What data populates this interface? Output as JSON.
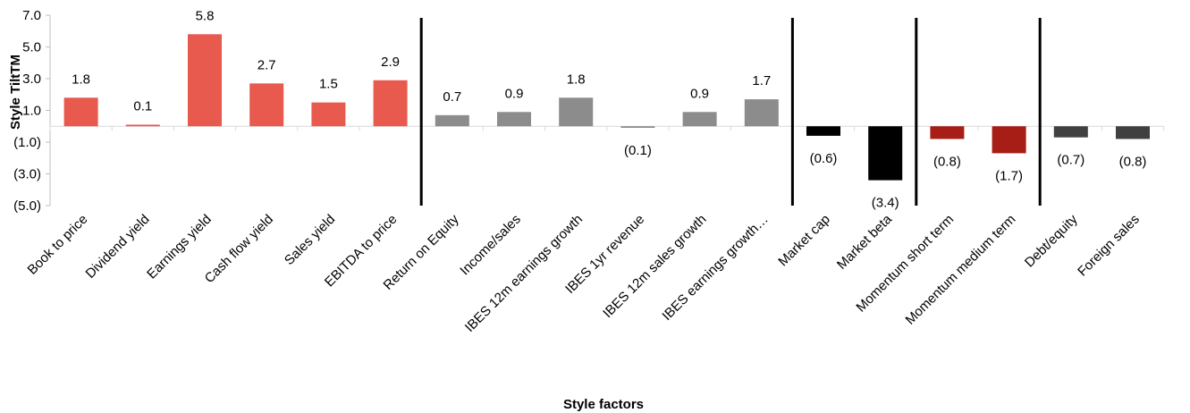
{
  "chart_data": {
    "type": "bar",
    "xlabel": "Style factors",
    "ylabel": "Style TiltTM",
    "ylim": [
      -5.0,
      7.0
    ],
    "yticks": [
      7.0,
      5.0,
      3.0,
      1.0,
      -1.0,
      -3.0,
      -5.0
    ],
    "ytick_labels": [
      "7.0",
      "5.0",
      "3.0",
      "1.0",
      "(1.0)",
      "(3.0)",
      "(5.0)"
    ],
    "grid": false,
    "categories": [
      "Book to price",
      "Dividend yield",
      "Earnings yield",
      "Cash flow yield",
      "Sales yield",
      "EBITDA to price",
      "Return on Equity",
      "Income/sales",
      "IBES 12m earnings growth",
      "IBES 1yr revenue",
      "IBES 12m sales growth",
      "IBES earnings growth…",
      "Market cap",
      "Market beta",
      "Momentum short term",
      "Momentum medium term",
      "Debt/equity",
      "Foreign sales"
    ],
    "values": [
      1.8,
      0.1,
      5.8,
      2.7,
      1.5,
      2.9,
      0.7,
      0.9,
      1.8,
      -0.1,
      0.9,
      1.7,
      -0.6,
      -3.4,
      -0.8,
      -1.7,
      -0.7,
      -0.8
    ],
    "value_labels": [
      "1.8",
      "0.1",
      "5.8",
      "2.7",
      "1.5",
      "2.9",
      "0.7",
      "0.9",
      "1.8",
      "(0.1)",
      "0.9",
      "1.7",
      "(0.6)",
      "(3.4)",
      "(0.8)",
      "(1.7)",
      "(0.7)",
      "(0.8)"
    ],
    "bar_colors": [
      "#E8594E",
      "#E8594E",
      "#E8594E",
      "#E8594E",
      "#E8594E",
      "#E8594E",
      "#8C8C8C",
      "#8C8C8C",
      "#8C8C8C",
      "#8C8C8C",
      "#8C8C8C",
      "#8C8C8C",
      "#000000",
      "#000000",
      "#A61E16",
      "#A61E16",
      "#404040",
      "#404040"
    ],
    "group_separators_after": [
      5,
      11,
      13,
      15
    ]
  }
}
